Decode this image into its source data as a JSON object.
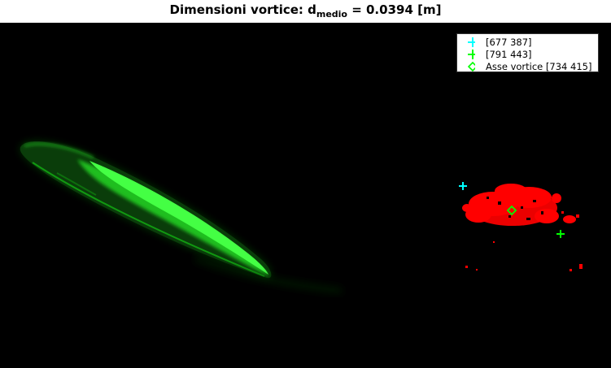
{
  "title": {
    "prefix": "Dimensioni vortice: d",
    "subscript": "medio",
    "suffix": " = 0.0394 [m]"
  },
  "legend": [
    {
      "label": "[677 387]",
      "marker": "plus",
      "color": "#00ffff"
    },
    {
      "label": "[791 443]",
      "marker": "plus",
      "color": "#00ff00"
    },
    {
      "label": "Asse vortice [734 415]",
      "marker": "diamond",
      "color": "#00ff00"
    }
  ],
  "colors": {
    "background": "#000000",
    "blade": "#00ff00",
    "vortex": "#ff0000",
    "frame": "#ffffff"
  },
  "markers": [
    {
      "name": "cyan-plus-marker",
      "shape": "plus",
      "color": "#00ffff"
    },
    {
      "name": "green-plus-marker",
      "shape": "plus",
      "color": "#00ff00"
    },
    {
      "name": "vortex-axis-marker",
      "shape": "diamond",
      "color": "#00ff00"
    }
  ]
}
